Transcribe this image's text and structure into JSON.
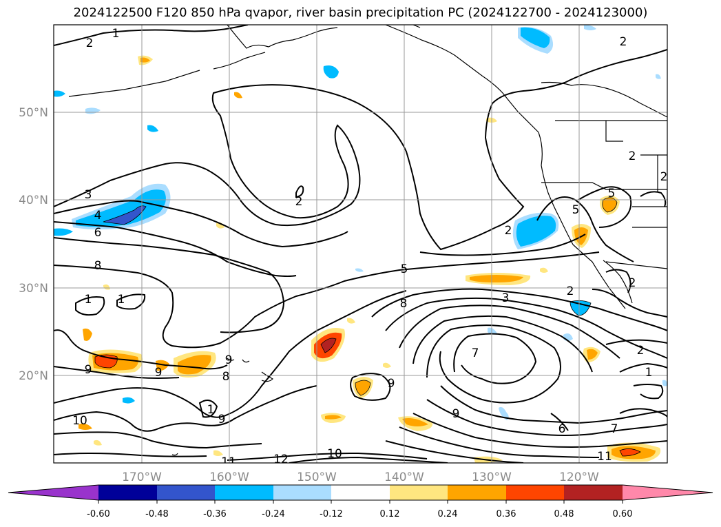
{
  "title": "2024122500 F120 850 hPa qvapor, river basin precipitation PC (2024122700 - 2024123000)",
  "map": {
    "lon_ticks": [
      "170°W",
      "160°W",
      "150°W",
      "140°W",
      "130°W",
      "120°W"
    ],
    "lat_ticks": [
      "50°N",
      "40°N",
      "30°N",
      "20°N"
    ],
    "grid": true,
    "contour_labels": [
      "1",
      "2",
      "2",
      "2",
      "2",
      "3",
      "4",
      "6",
      "8",
      "1",
      "1",
      "9",
      "9",
      "9",
      "8",
      "9",
      "1",
      "10",
      "9",
      "10",
      "11",
      "12",
      "5",
      "8",
      "5",
      "5",
      "2",
      "3",
      "2",
      "7",
      "2",
      "2",
      "1",
      "6",
      "7",
      "11",
      "9",
      "2"
    ]
  },
  "colorbar": {
    "ticks": [
      "-0.60",
      "-0.48",
      "-0.36",
      "-0.24",
      "-0.12",
      "0.12",
      "0.24",
      "0.36",
      "0.48",
      "0.60"
    ],
    "colors": [
      "#9933cc",
      "#000099",
      "#3355cc",
      "#00bbff",
      "#aaddff",
      "#ffffff",
      "#ffe680",
      "#ffa500",
      "#ff4500",
      "#b22222",
      "#ff88aa"
    ]
  }
}
